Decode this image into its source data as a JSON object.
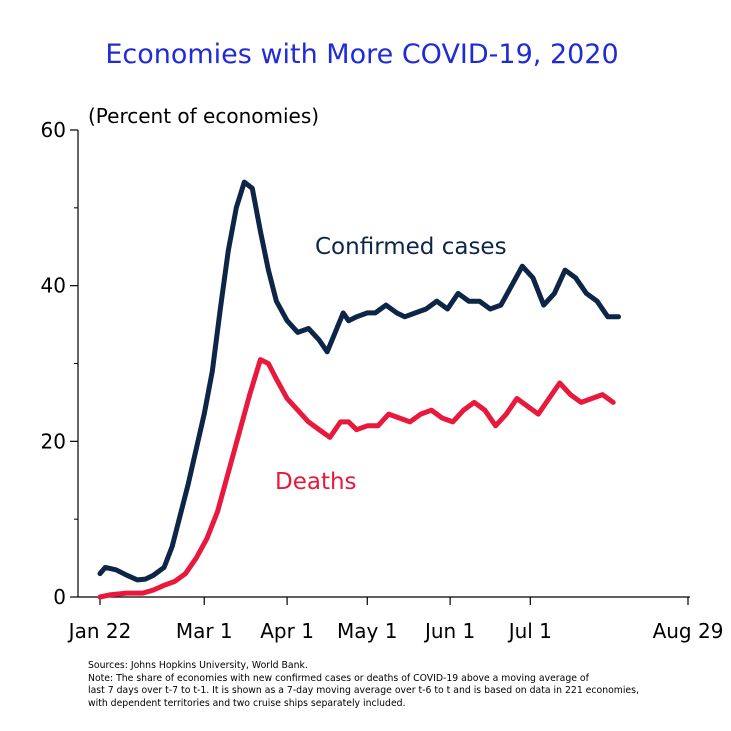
{
  "chart_data": {
    "type": "line",
    "title": "Economies with More COVID-19, 2020",
    "ylabel": "(Percent of economies)",
    "xlabel": "",
    "ylim": [
      0,
      60
    ],
    "yticks": [
      0,
      20,
      40,
      60
    ],
    "xlim": [
      0,
      220
    ],
    "xticks": [
      {
        "day": 0,
        "label": "Jan 22"
      },
      {
        "day": 39,
        "label": "Mar 1"
      },
      {
        "day": 70,
        "label": "Apr 1"
      },
      {
        "day": 100,
        "label": "May 1"
      },
      {
        "day": 131,
        "label": "Jun 1"
      },
      {
        "day": 161,
        "label": "Jul 1"
      },
      {
        "day": 220,
        "label": "Aug 29"
      }
    ],
    "series": [
      {
        "name": "Confirmed cases",
        "color": "#0d2547",
        "points": [
          [
            0,
            3
          ],
          [
            2,
            3.8
          ],
          [
            6,
            3.5
          ],
          [
            10,
            2.8
          ],
          [
            14,
            2.2
          ],
          [
            17,
            2.3
          ],
          [
            20,
            2.8
          ],
          [
            24,
            3.8
          ],
          [
            27,
            6.5
          ],
          [
            30,
            10.5
          ],
          [
            33,
            14.5
          ],
          [
            36,
            19
          ],
          [
            39,
            23.5
          ],
          [
            42,
            29
          ],
          [
            45,
            37
          ],
          [
            48,
            44.5
          ],
          [
            51,
            50
          ],
          [
            54,
            53.3
          ],
          [
            57,
            52.5
          ],
          [
            60,
            47
          ],
          [
            63,
            42
          ],
          [
            66,
            38
          ],
          [
            70,
            35.5
          ],
          [
            74,
            34
          ],
          [
            78,
            34.5
          ],
          [
            82,
            33
          ],
          [
            85,
            31.5
          ],
          [
            88,
            34
          ],
          [
            91,
            36.5
          ],
          [
            93,
            35.5
          ],
          [
            96,
            36
          ],
          [
            100,
            36.5
          ],
          [
            103,
            36.5
          ],
          [
            107,
            37.5
          ],
          [
            111,
            36.5
          ],
          [
            114,
            36
          ],
          [
            118,
            36.5
          ],
          [
            122,
            37
          ],
          [
            126,
            38
          ],
          [
            130,
            37
          ],
          [
            134,
            39
          ],
          [
            138,
            38
          ],
          [
            142,
            38
          ],
          [
            146,
            37
          ],
          [
            150,
            37.5
          ],
          [
            154,
            40
          ],
          [
            158,
            42.5
          ],
          [
            162,
            41
          ],
          [
            166,
            37.5
          ],
          [
            170,
            39
          ],
          [
            174,
            42
          ],
          [
            178,
            41
          ],
          [
            182,
            39
          ],
          [
            186,
            38
          ],
          [
            190,
            36
          ],
          [
            194,
            36
          ]
        ]
      },
      {
        "name": "Deaths",
        "color": "#e8193c",
        "points": [
          [
            0,
            0
          ],
          [
            4,
            0.3
          ],
          [
            10,
            0.5
          ],
          [
            16,
            0.5
          ],
          [
            20,
            0.9
          ],
          [
            24,
            1.5
          ],
          [
            28,
            2
          ],
          [
            32,
            3
          ],
          [
            36,
            5
          ],
          [
            40,
            7.5
          ],
          [
            44,
            11
          ],
          [
            48,
            16
          ],
          [
            52,
            21
          ],
          [
            56,
            26
          ],
          [
            60,
            30.5
          ],
          [
            63,
            30
          ],
          [
            66,
            28
          ],
          [
            70,
            25.5
          ],
          [
            74,
            24
          ],
          [
            78,
            22.5
          ],
          [
            82,
            21.5
          ],
          [
            86,
            20.5
          ],
          [
            90,
            22.5
          ],
          [
            93,
            22.5
          ],
          [
            96,
            21.5
          ],
          [
            100,
            22
          ],
          [
            104,
            22
          ],
          [
            108,
            23.5
          ],
          [
            112,
            23
          ],
          [
            116,
            22.5
          ],
          [
            120,
            23.5
          ],
          [
            124,
            24
          ],
          [
            128,
            23
          ],
          [
            132,
            22.5
          ],
          [
            136,
            24
          ],
          [
            140,
            25
          ],
          [
            144,
            24
          ],
          [
            148,
            22
          ],
          [
            152,
            23.5
          ],
          [
            156,
            25.5
          ],
          [
            160,
            24.5
          ],
          [
            164,
            23.5
          ],
          [
            168,
            25.5
          ],
          [
            172,
            27.5
          ],
          [
            176,
            26
          ],
          [
            180,
            25
          ],
          [
            184,
            25.5
          ],
          [
            188,
            26
          ],
          [
            192,
            25
          ]
        ]
      }
    ],
    "annotations": [
      {
        "series": "Confirmed cases",
        "text": "Confirmed cases",
        "color": "#0d2547"
      },
      {
        "series": "Deaths",
        "text": "Deaths",
        "color": "#e8193c"
      }
    ]
  },
  "notes": {
    "source": "Sources: Johns Hopkins University, World Bank.",
    "note_lines": [
      "Note: The share of economies with new confirmed cases or deaths of COVID-19 above a moving average of",
      "last 7 days over t-7 to t-1. It is shown as a 7-day moving average over t-6 to t and is based on data in 221 economies,",
      "with dependent territories and two cruise ships separately included."
    ]
  }
}
